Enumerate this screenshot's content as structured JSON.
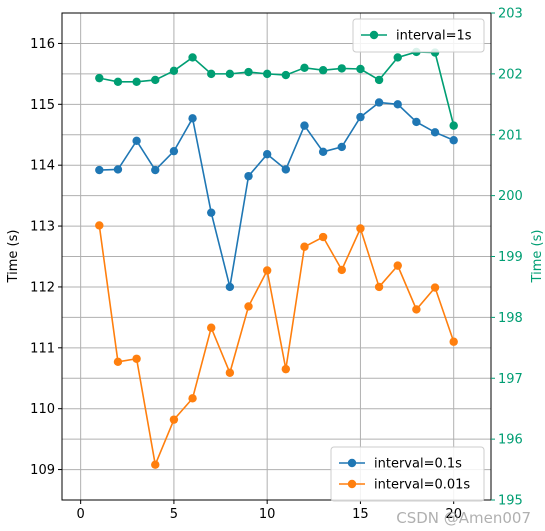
{
  "chart_data": {
    "type": "line",
    "x": [
      1,
      2,
      3,
      4,
      5,
      6,
      7,
      8,
      9,
      10,
      11,
      12,
      13,
      14,
      15,
      16,
      17,
      18,
      19,
      20
    ],
    "xlim": [
      -1,
      22
    ],
    "xticks": [
      "0",
      "5",
      "10",
      "15",
      "20"
    ],
    "left_axis": {
      "ylabel": "Time (s)",
      "ylim": [
        108.5,
        116.5
      ],
      "yticks": [
        "109",
        "110",
        "111",
        "112",
        "113",
        "114",
        "115",
        "116"
      ],
      "series": [
        {
          "name": "interval=0.1s",
          "color": "#1f77b4",
          "values": [
            113.92,
            113.93,
            114.4,
            113.92,
            114.23,
            114.77,
            113.22,
            112.0,
            113.82,
            114.18,
            113.93,
            114.65,
            114.22,
            114.3,
            114.79,
            115.03,
            115.0,
            114.71,
            114.54,
            114.41
          ]
        },
        {
          "name": "interval=0.01s",
          "color": "#ff7f0e",
          "values": [
            113.01,
            110.77,
            110.82,
            109.08,
            109.82,
            110.17,
            111.33,
            110.59,
            111.68,
            112.27,
            110.65,
            112.66,
            112.82,
            112.28,
            112.96,
            112.0,
            112.35,
            111.63,
            111.99,
            111.1
          ]
        }
      ],
      "legend_position": "lower right"
    },
    "right_axis": {
      "ylabel": "Time (s)",
      "color": "#009e73",
      "ylim": [
        195,
        203
      ],
      "yticks": [
        "195",
        "196",
        "197",
        "198",
        "199",
        "200",
        "201",
        "202",
        "203"
      ],
      "series": [
        {
          "name": "interval=1s",
          "color": "#009e73",
          "values": [
            201.93,
            201.87,
            201.87,
            201.9,
            202.05,
            202.27,
            202.0,
            202.0,
            202.03,
            202.0,
            201.98,
            202.1,
            202.06,
            202.09,
            202.08,
            201.9,
            202.27,
            202.36,
            202.35,
            201.15
          ]
        }
      ],
      "legend_position": "upper right"
    },
    "grid": true
  },
  "watermark": "CSDN @Amen007"
}
